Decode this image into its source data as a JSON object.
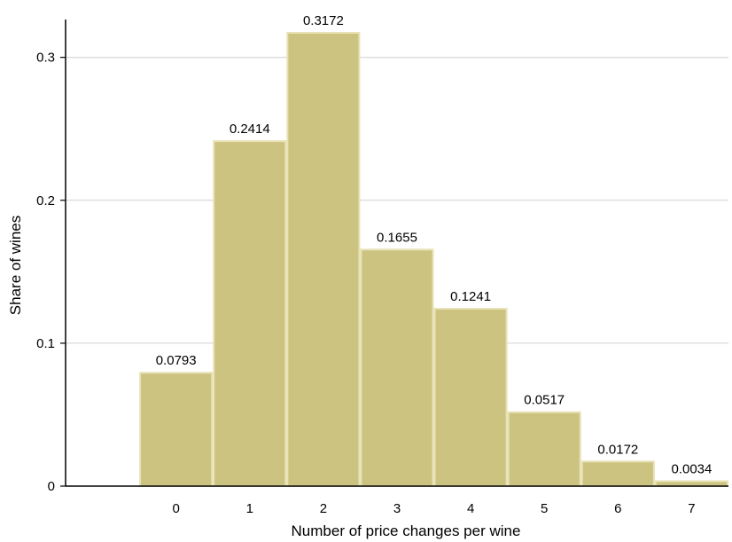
{
  "chart_data": {
    "type": "bar",
    "title": "",
    "xlabel": "Number of price changes per wine",
    "ylabel": "Share of wines",
    "categories": [
      "0",
      "1",
      "2",
      "3",
      "4",
      "5",
      "6",
      "7"
    ],
    "values": [
      0.0793,
      0.2414,
      0.3172,
      0.1655,
      0.1241,
      0.0517,
      0.0172,
      0.0034
    ],
    "data_labels": [
      "0.0793",
      "0.2414",
      "0.3172",
      "0.1655",
      "0.1241",
      "0.0517",
      "0.0172",
      "0.0034"
    ],
    "y_ticks": [
      {
        "value": 0,
        "label": "0"
      },
      {
        "value": 0.1,
        "label": "0.1"
      },
      {
        "value": 0.2,
        "label": "0.2"
      },
      {
        "value": 0.3,
        "label": "0.3"
      }
    ],
    "ylim": [
      0,
      0.3265
    ],
    "xlim": [
      -1.5,
      7.5
    ],
    "grid": true,
    "legend": "none",
    "colors": {
      "bar_fill": "#CCC381",
      "bar_stroke": "#E8E2B6",
      "grid": "#D0D0D0",
      "axis": "#000000"
    }
  }
}
